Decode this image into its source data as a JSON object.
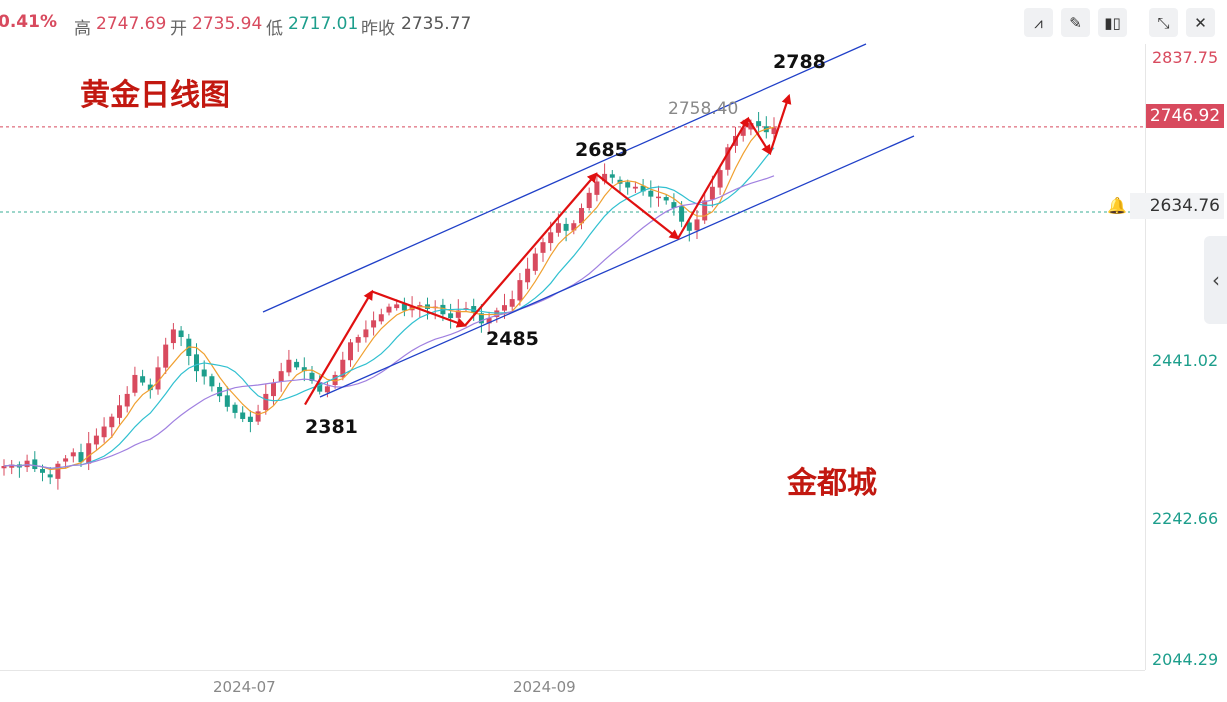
{
  "header": {
    "change_pct": "0.41%",
    "high_label": "高",
    "high": "2747.69",
    "open_label": "开",
    "open": "2735.94",
    "low_label": "低",
    "low": "2717.01",
    "prev_close_label": "昨收",
    "prev_close": "2735.77"
  },
  "toolbar": [
    {
      "name": "line-chart-icon",
      "glyph": "⩘"
    },
    {
      "name": "draw-pen-icon",
      "glyph": "✎"
    },
    {
      "name": "candlestick-icon",
      "glyph": "▮▯"
    },
    {
      "name": "collapse-icon",
      "glyph": "⤡"
    },
    {
      "name": "close-icon",
      "glyph": "✕"
    }
  ],
  "price_axis": {
    "labels": [
      "2837.75",
      "2441.02",
      "2242.66",
      "2044.29"
    ],
    "current_price": "2746.92",
    "ref_price": "2634.76"
  },
  "time_axis": [
    "2024-07",
    "2024-09"
  ],
  "chart_title": "黄金日线图",
  "watermark": "金都城",
  "high_marker": "2758.40",
  "colors": {
    "up": "#d84a5e",
    "down": "#1d9e8c",
    "channel": "#2040c8",
    "arrow": "#e01010"
  },
  "chart_data": {
    "type": "candlestick",
    "title": "黄金日线图",
    "ylim": [
      2044.29,
      2837.75
    ],
    "annotations": [
      "2381",
      "2485",
      "2685",
      "2788"
    ],
    "zigzag_points": [
      2381,
      2530,
      2485,
      2685,
      2600,
      2758,
      2712,
      2788
    ],
    "close_series": [
      2300,
      2302,
      2298,
      2307,
      2296,
      2291,
      2285,
      2303,
      2310,
      2318,
      2305,
      2330,
      2340,
      2352,
      2365,
      2380,
      2395,
      2420,
      2410,
      2400,
      2430,
      2460,
      2480,
      2470,
      2445,
      2425,
      2418,
      2405,
      2392,
      2378,
      2370,
      2362,
      2358,
      2372,
      2395,
      2410,
      2425,
      2440,
      2430,
      2425,
      2412,
      2398,
      2405,
      2420,
      2440,
      2463,
      2470,
      2480,
      2492,
      2500,
      2510,
      2513,
      2505,
      2510,
      2512,
      2507,
      2510,
      2500,
      2495,
      2505,
      2508,
      2502,
      2488,
      2495,
      2505,
      2512,
      2520,
      2545,
      2560,
      2580,
      2595,
      2608,
      2620,
      2610,
      2620,
      2640,
      2660,
      2675,
      2685,
      2680,
      2672,
      2667,
      2668,
      2662,
      2655,
      2655,
      2650,
      2640,
      2622,
      2610,
      2625,
      2650,
      2668,
      2690,
      2720,
      2735,
      2746,
      2752,
      2748,
      2740,
      2746
    ]
  }
}
